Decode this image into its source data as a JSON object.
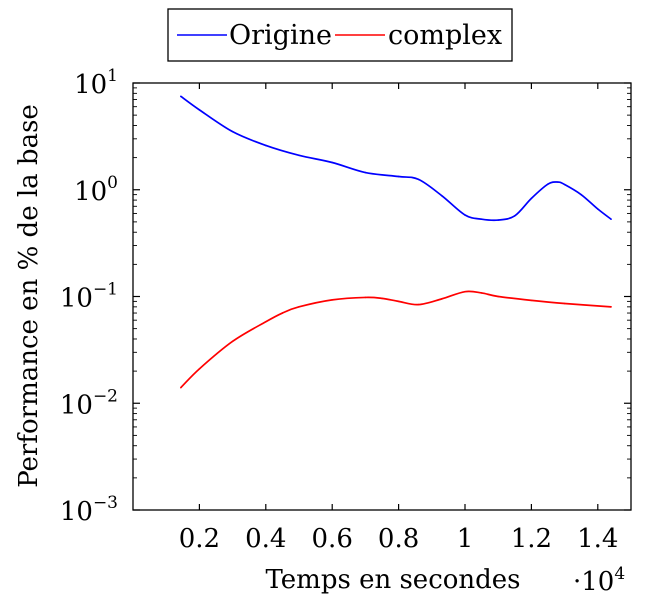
{
  "chart_data": {
    "type": "line",
    "title": "",
    "xlabel": "Temps en secondes",
    "ylabel": "Performance en % de la base",
    "x_multiplier": {
      "base": "·10",
      "exponent": "4"
    },
    "xlim": [
      0.0,
      1.5
    ],
    "ylim": [
      0.001,
      10
    ],
    "yscale": "log",
    "grid": false,
    "legend_placement": "top-center",
    "x_ticks": [
      {
        "value": 0.2,
        "label": "0.2"
      },
      {
        "value": 0.4,
        "label": "0.4"
      },
      {
        "value": 0.6,
        "label": "0.6"
      },
      {
        "value": 0.8,
        "label": "0.8"
      },
      {
        "value": 1.0,
        "label": "1"
      },
      {
        "value": 1.2,
        "label": "1.2"
      },
      {
        "value": 1.4,
        "label": "1.4"
      }
    ],
    "y_ticks": [
      {
        "value": 10,
        "base": "10",
        "exponent": "1"
      },
      {
        "value": 1,
        "base": "10",
        "exponent": "0"
      },
      {
        "value": 0.1,
        "base": "10",
        "exponent": "−1"
      },
      {
        "value": 0.01,
        "base": "10",
        "exponent": "−2"
      },
      {
        "value": 0.001,
        "base": "10",
        "exponent": "−3"
      }
    ],
    "series": [
      {
        "name": "Origine",
        "color": "#0000ff",
        "x": [
          0.144,
          0.2,
          0.3,
          0.4,
          0.5,
          0.6,
          0.7,
          0.8,
          0.86,
          0.93,
          1.0,
          1.05,
          1.1,
          1.15,
          1.2,
          1.25,
          1.28,
          1.3,
          1.35,
          1.4,
          1.44
        ],
        "y": [
          7.5,
          5.6,
          3.5,
          2.6,
          2.1,
          1.8,
          1.45,
          1.33,
          1.25,
          0.88,
          0.58,
          0.53,
          0.52,
          0.57,
          0.83,
          1.13,
          1.18,
          1.12,
          0.9,
          0.66,
          0.53
        ]
      },
      {
        "name": "complex",
        "color": "#ff0000",
        "x": [
          0.144,
          0.2,
          0.3,
          0.4,
          0.45,
          0.5,
          0.6,
          0.7,
          0.75,
          0.8,
          0.86,
          0.93,
          1.0,
          1.05,
          1.1,
          1.2,
          1.3,
          1.44
        ],
        "y": [
          0.014,
          0.021,
          0.038,
          0.058,
          0.07,
          0.08,
          0.093,
          0.098,
          0.096,
          0.09,
          0.084,
          0.095,
          0.111,
          0.108,
          0.1,
          0.092,
          0.086,
          0.08
        ]
      }
    ]
  }
}
